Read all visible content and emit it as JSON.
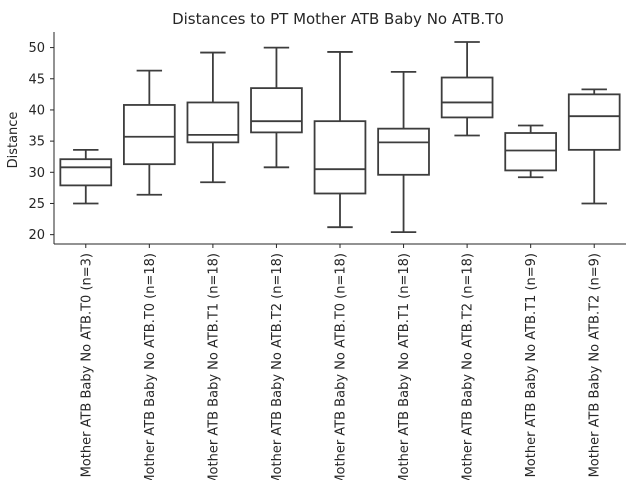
{
  "chart_data": {
    "type": "box",
    "title": "Distances to PT Mother ATB Baby No ATB.T0",
    "xlabel": "",
    "ylabel": "Distance",
    "ylim": [
      18.5,
      52.5
    ],
    "yticks": [
      20,
      25,
      30,
      35,
      40,
      45,
      50
    ],
    "grid": false,
    "categories": [
      "Mother ATB Baby No ATB.T0 (n=3)",
      "Mother ATB Baby No ATB.T0 (n=18)",
      "Mother ATB Baby No ATB.T1 (n=18)",
      "Mother ATB Baby No ATB.T2 (n=18)",
      "Mother ATB Baby No ATB.T0 (n=18)",
      "Mother ATB Baby No ATB.T1 (n=18)",
      "Mother ATB Baby No ATB.T2 (n=18)",
      "Mother ATB Baby No ATB.T1 (n=9)",
      "Mother ATB Baby No ATB.T2 (n=9)"
    ],
    "boxes": [
      {
        "whislo": 25.0,
        "q1": 27.9,
        "median": 30.8,
        "q3": 32.1,
        "whishi": 33.6
      },
      {
        "whislo": 26.4,
        "q1": 31.3,
        "median": 35.7,
        "q3": 40.8,
        "whishi": 46.3
      },
      {
        "whislo": 28.4,
        "q1": 34.8,
        "median": 36.0,
        "q3": 41.2,
        "whishi": 49.2
      },
      {
        "whislo": 30.8,
        "q1": 36.4,
        "median": 38.2,
        "q3": 43.5,
        "whishi": 50.0
      },
      {
        "whislo": 21.2,
        "q1": 26.6,
        "median": 30.5,
        "q3": 38.2,
        "whishi": 49.3
      },
      {
        "whislo": 20.4,
        "q1": 29.6,
        "median": 34.8,
        "q3": 37.0,
        "whishi": 46.1
      },
      {
        "whislo": 35.9,
        "q1": 38.8,
        "median": 41.2,
        "q3": 45.2,
        "whishi": 50.9
      },
      {
        "whislo": 29.2,
        "q1": 30.3,
        "median": 33.5,
        "q3": 36.3,
        "whishi": 37.5
      },
      {
        "whislo": 25.0,
        "q1": 33.6,
        "median": 39.0,
        "q3": 42.5,
        "whishi": 43.3
      }
    ]
  }
}
